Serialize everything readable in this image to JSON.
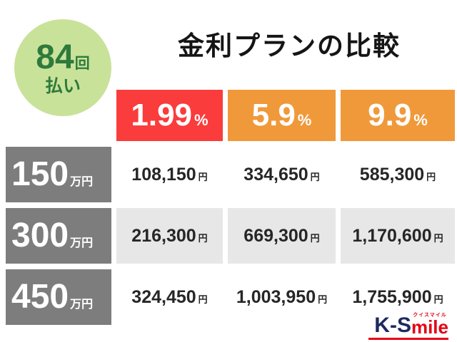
{
  "badge": {
    "count": "84",
    "count_unit": "回",
    "label": "払い"
  },
  "title": "金利プランの比較",
  "table": {
    "columns": [
      {
        "rate": "1.99",
        "unit": "%",
        "color": "#fa3c3c"
      },
      {
        "rate": "5.9",
        "unit": "%",
        "color": "#f0993a"
      },
      {
        "rate": "9.9",
        "unit": "%",
        "color": "#f0993a"
      }
    ],
    "rows": [
      {
        "amount": "150",
        "amount_unit": "万円",
        "cells": [
          {
            "value": "108,150",
            "unit": "円"
          },
          {
            "value": "334,650",
            "unit": "円"
          },
          {
            "value": "585,300",
            "unit": "円"
          }
        ]
      },
      {
        "amount": "300",
        "amount_unit": "万円",
        "cells": [
          {
            "value": "216,300",
            "unit": "円"
          },
          {
            "value": "669,300",
            "unit": "円"
          },
          {
            "value": "1,170,600",
            "unit": "円"
          }
        ]
      },
      {
        "amount": "450",
        "amount_unit": "万円",
        "cells": [
          {
            "value": "324,450",
            "unit": "円"
          },
          {
            "value": "1,003,950",
            "unit": "円"
          },
          {
            "value": "1,755,900",
            "unit": "円"
          }
        ]
      }
    ]
  },
  "logo": {
    "prefix": "K-S",
    "suffix": "mile",
    "ruby": "クイスマイル"
  },
  "colors": {
    "badge_bg": "#c9e29a",
    "badge_text": "#2e7a3c",
    "rate_red": "#fa3c3c",
    "rate_orange": "#f0993a",
    "row_header_bg": "#7d7d7d",
    "alt_row_bg": "#e7e7e7"
  },
  "chart_data": {
    "type": "table",
    "title": "金利プランの比較",
    "annotation": "84回払い",
    "columns": [
      "1.99%",
      "5.9%",
      "9.9%"
    ],
    "rows": [
      "150万円",
      "300万円",
      "450万円"
    ],
    "values": [
      [
        "108,150円",
        "334,650円",
        "585,300円"
      ],
      [
        "216,300円",
        "669,300円",
        "1,170,600円"
      ],
      [
        "324,450円",
        "1,003,950円",
        "1,755,900円"
      ]
    ]
  }
}
